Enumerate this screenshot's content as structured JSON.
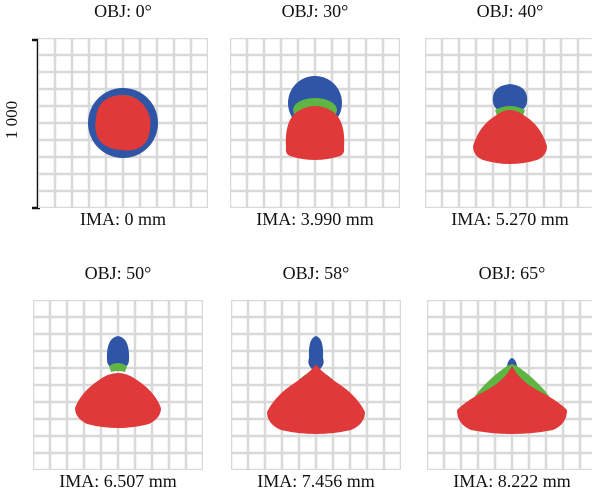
{
  "scale": {
    "label": "1 000"
  },
  "colors": {
    "blue": "#2f55a6",
    "green": "#5fb544",
    "red": "#e0393a",
    "grid": "#d9d9d9",
    "grid_bg": "#ececec"
  },
  "panels": [
    {
      "obj": "OBJ: 0°",
      "ima": "IMA: 0 mm"
    },
    {
      "obj": "OBJ: 30°",
      "ima": "IMA: 3.990 mm"
    },
    {
      "obj": "OBJ: 40°",
      "ima": "IMA: 5.270 mm"
    },
    {
      "obj": "OBJ: 50°",
      "ima": "IMA: 6.507 mm"
    },
    {
      "obj": "OBJ: 58°",
      "ima": "IMA: 7.456 mm"
    },
    {
      "obj": "OBJ: 65°",
      "ima": "IMA: 8.222 mm"
    }
  ]
}
